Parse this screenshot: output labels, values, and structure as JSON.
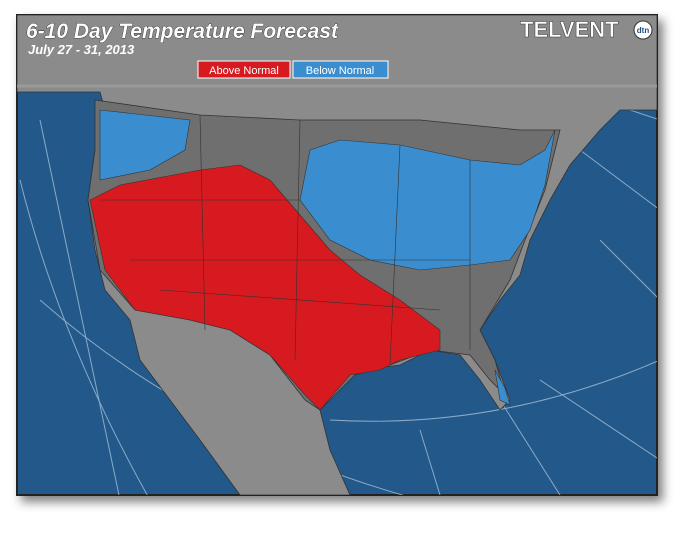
{
  "header": {
    "title": "6-10 Day Temperature Forecast",
    "subtitle": "July 27 - 31, 2013"
  },
  "legend": [
    {
      "label": "Above Normal",
      "color": "#d71a1f"
    },
    {
      "label": "Below Normal",
      "color": "#3a8ed0"
    }
  ],
  "logo": {
    "name": "TELVENT",
    "badge": "dtn"
  }
}
